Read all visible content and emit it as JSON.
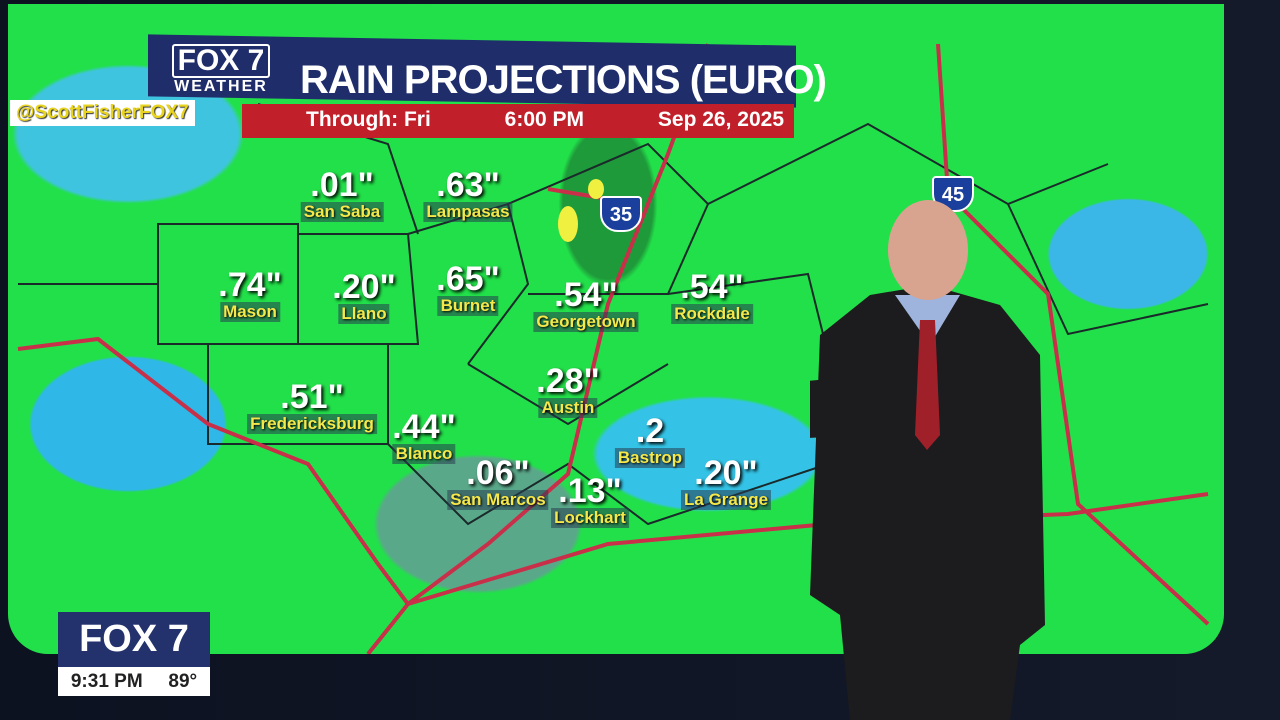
{
  "header": {
    "logo": "FOX 7",
    "logo_sub": "WEATHER",
    "title": "RAIN PROJECTIONS (EURO)",
    "through": "Through: Fri",
    "time": "6:00 PM",
    "date": "Sep 26, 2025",
    "handle": "@ScottFisherFOX7"
  },
  "highways": {
    "i35": "35",
    "i45": "45"
  },
  "locations": [
    {
      "city": "San Saba",
      "value": ".01\""
    },
    {
      "city": "Lampasas",
      "value": ".63\""
    },
    {
      "city": "Mason",
      "value": ".74\""
    },
    {
      "city": "Llano",
      "value": ".20\""
    },
    {
      "city": "Burnet",
      "value": ".65\""
    },
    {
      "city": "Georgetown",
      "value": ".54\""
    },
    {
      "city": "Rockdale",
      "value": ".54\""
    },
    {
      "city": "Fredericksburg",
      "value": ".51\""
    },
    {
      "city": "Blanco",
      "value": ".44\""
    },
    {
      "city": "Austin",
      "value": ".28\""
    },
    {
      "city": "Bastrop",
      "value": ".2"
    },
    {
      "city": "San Marcos",
      "value": ".06\""
    },
    {
      "city": "Lockhart",
      "value": ".13\""
    },
    {
      "city": "La Grange",
      "value": ".20\""
    }
  ],
  "bug": {
    "logo": "FOX 7",
    "time": "9:31 PM",
    "temp": "89°"
  },
  "colors": {
    "heavy_rain": "#1f9a3a",
    "moderate_rain": "#22e04a",
    "light_rain": "#2fb7e8",
    "title_bg": "#1f2e6b",
    "subtitle_bg": "#c1202b",
    "city_text": "#f5e84a"
  }
}
